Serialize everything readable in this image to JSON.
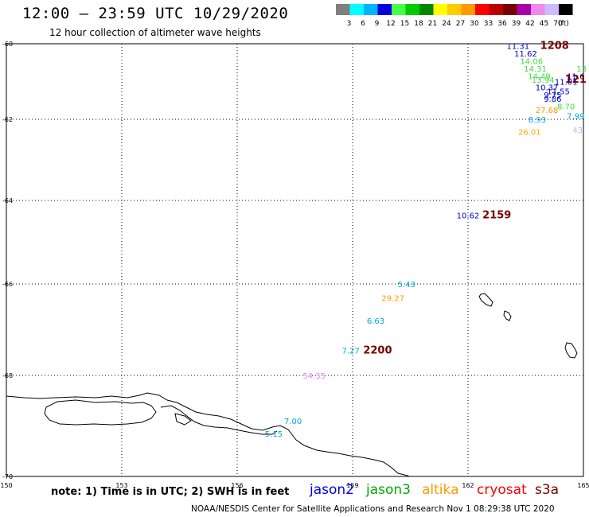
{
  "header": {
    "title": "12:00 – 23:59 UTC 10/29/2020",
    "subtitle": "12 hour collection of altimeter wave heights"
  },
  "colorbar": {
    "unit_label": "(ft)",
    "bins": [
      {
        "label": "3",
        "color": "#7f7f7f"
      },
      {
        "label": "6",
        "color": "#00ffff"
      },
      {
        "label": "9",
        "color": "#00b4ff"
      },
      {
        "label": "12",
        "color": "#0000e0"
      },
      {
        "label": "15",
        "color": "#44ff44"
      },
      {
        "label": "18",
        "color": "#00cc00"
      },
      {
        "label": "21",
        "color": "#008800"
      },
      {
        "label": "24",
        "color": "#ffff00"
      },
      {
        "label": "27",
        "color": "#ffcc00"
      },
      {
        "label": "30",
        "color": "#ff9900"
      },
      {
        "label": "33",
        "color": "#ff0000"
      },
      {
        "label": "36",
        "color": "#bb0000"
      },
      {
        "label": "39",
        "color": "#770000"
      },
      {
        "label": "42",
        "color": "#aa00aa"
      },
      {
        "label": "45",
        "color": "#ee88ee"
      },
      {
        "label": "70",
        "color": "#ccbbff"
      },
      {
        "label": "",
        "color": "#000000"
      }
    ]
  },
  "map": {
    "lon_range": [
      150,
      165
    ],
    "lat_range": [
      -60,
      -70
    ],
    "lon_ticks": [
      "150",
      "153",
      "156",
      "159",
      "162",
      "165"
    ],
    "lat_ticks": [
      "-60",
      "-62",
      "-64",
      "-66",
      "-68",
      "-70"
    ],
    "observations": [
      {
        "text": "11.31",
        "lon": 163.3,
        "lat": -60.05,
        "color": "#0000cc"
      },
      {
        "text": "1208",
        "lon": 164.25,
        "lat": -60.05,
        "color": "#770000",
        "bold": true
      },
      {
        "text": "11.62",
        "lon": 163.5,
        "lat": -60.25,
        "color": "#0000cc"
      },
      {
        "text": "14.06",
        "lon": 163.65,
        "lat": -60.45,
        "color": "#44dd44"
      },
      {
        "text": "14.31",
        "lon": 163.75,
        "lat": -60.65,
        "color": "#44dd44"
      },
      {
        "text": "13",
        "lon": 164.95,
        "lat": -60.65,
        "color": "#44dd44"
      },
      {
        "text": "14.49",
        "lon": 163.85,
        "lat": -60.85,
        "color": "#44dd44"
      },
      {
        "text": "13.94",
        "lon": 163.95,
        "lat": -60.95,
        "color": "#44dd44"
      },
      {
        "text": "11.6",
        "lon": 164.8,
        "lat": -60.85,
        "color": "#0000cc"
      },
      {
        "text": "121",
        "lon": 164.8,
        "lat": -60.95,
        "color": "#770000",
        "bold": true
      },
      {
        "text": "11.01",
        "lon": 164.55,
        "lat": -61.0,
        "color": "#0000cc"
      },
      {
        "text": "10.37",
        "lon": 164.05,
        "lat": -61.15,
        "color": "#0000cc"
      },
      {
        "text": "11.55",
        "lon": 164.35,
        "lat": -61.25,
        "color": "#0000cc"
      },
      {
        "text": "9.75",
        "lon": 164.2,
        "lat": -61.35,
        "color": "#0000cc"
      },
      {
        "text": "9.86",
        "lon": 164.2,
        "lat": -61.45,
        "color": "#0000cc"
      },
      {
        "text": "8.70",
        "lon": 164.55,
        "lat": -61.65,
        "color": "#44dd44"
      },
      {
        "text": "27.68",
        "lon": 164.05,
        "lat": -61.75,
        "color": "#ff9900"
      },
      {
        "text": "7.99",
        "lon": 164.8,
        "lat": -61.9,
        "color": "#00aadd"
      },
      {
        "text": "8.93",
        "lon": 163.8,
        "lat": -62.0,
        "color": "#00aadd"
      },
      {
        "text": "43",
        "lon": 164.85,
        "lat": -62.25,
        "color": "#bbbbee"
      },
      {
        "text": "26.01",
        "lon": 163.6,
        "lat": -62.3,
        "color": "#ffaa00"
      },
      {
        "text": "10.62",
        "lon": 162.0,
        "lat": -64.35,
        "color": "#0000cc"
      },
      {
        "text": "2159",
        "lon": 162.75,
        "lat": -64.35,
        "color": "#770000",
        "bold": true
      },
      {
        "text": "5.43",
        "lon": 160.4,
        "lat": -66.0,
        "color": "#00aadd"
      },
      {
        "text": "29.27",
        "lon": 160.05,
        "lat": -66.3,
        "color": "#ff9900"
      },
      {
        "text": "6.63",
        "lon": 159.6,
        "lat": -66.8,
        "color": "#00aadd"
      },
      {
        "text": "7.27",
        "lon": 158.95,
        "lat": -67.45,
        "color": "#00aadd"
      },
      {
        "text": "2200",
        "lon": 159.65,
        "lat": -67.45,
        "color": "#770000",
        "bold": true
      },
      {
        "text": "54.35",
        "lon": 158.0,
        "lat": -68.0,
        "color": "#dd88dd"
      },
      {
        "text": "7.00",
        "lon": 157.45,
        "lat": -68.9,
        "color": "#00aadd"
      },
      {
        "text": "5.15",
        "lon": 156.95,
        "lat": -69.15,
        "color": "#00aadd"
      }
    ]
  },
  "footer": {
    "note": "note: 1) Time is in UTC; 2) SWH is in feet",
    "satellites": [
      {
        "name": "jason2",
        "color": "#0000dd"
      },
      {
        "name": "jason3",
        "color": "#00aa00"
      },
      {
        "name": "altika",
        "color": "#ff9900"
      },
      {
        "name": "cryosat",
        "color": "#ff0000"
      },
      {
        "name": "s3a",
        "color": "#770000"
      }
    ],
    "credit": "NOAA/NESDIS Center for Satellite Applications and Research    Nov  1 08:29:38 UTC 2020"
  }
}
